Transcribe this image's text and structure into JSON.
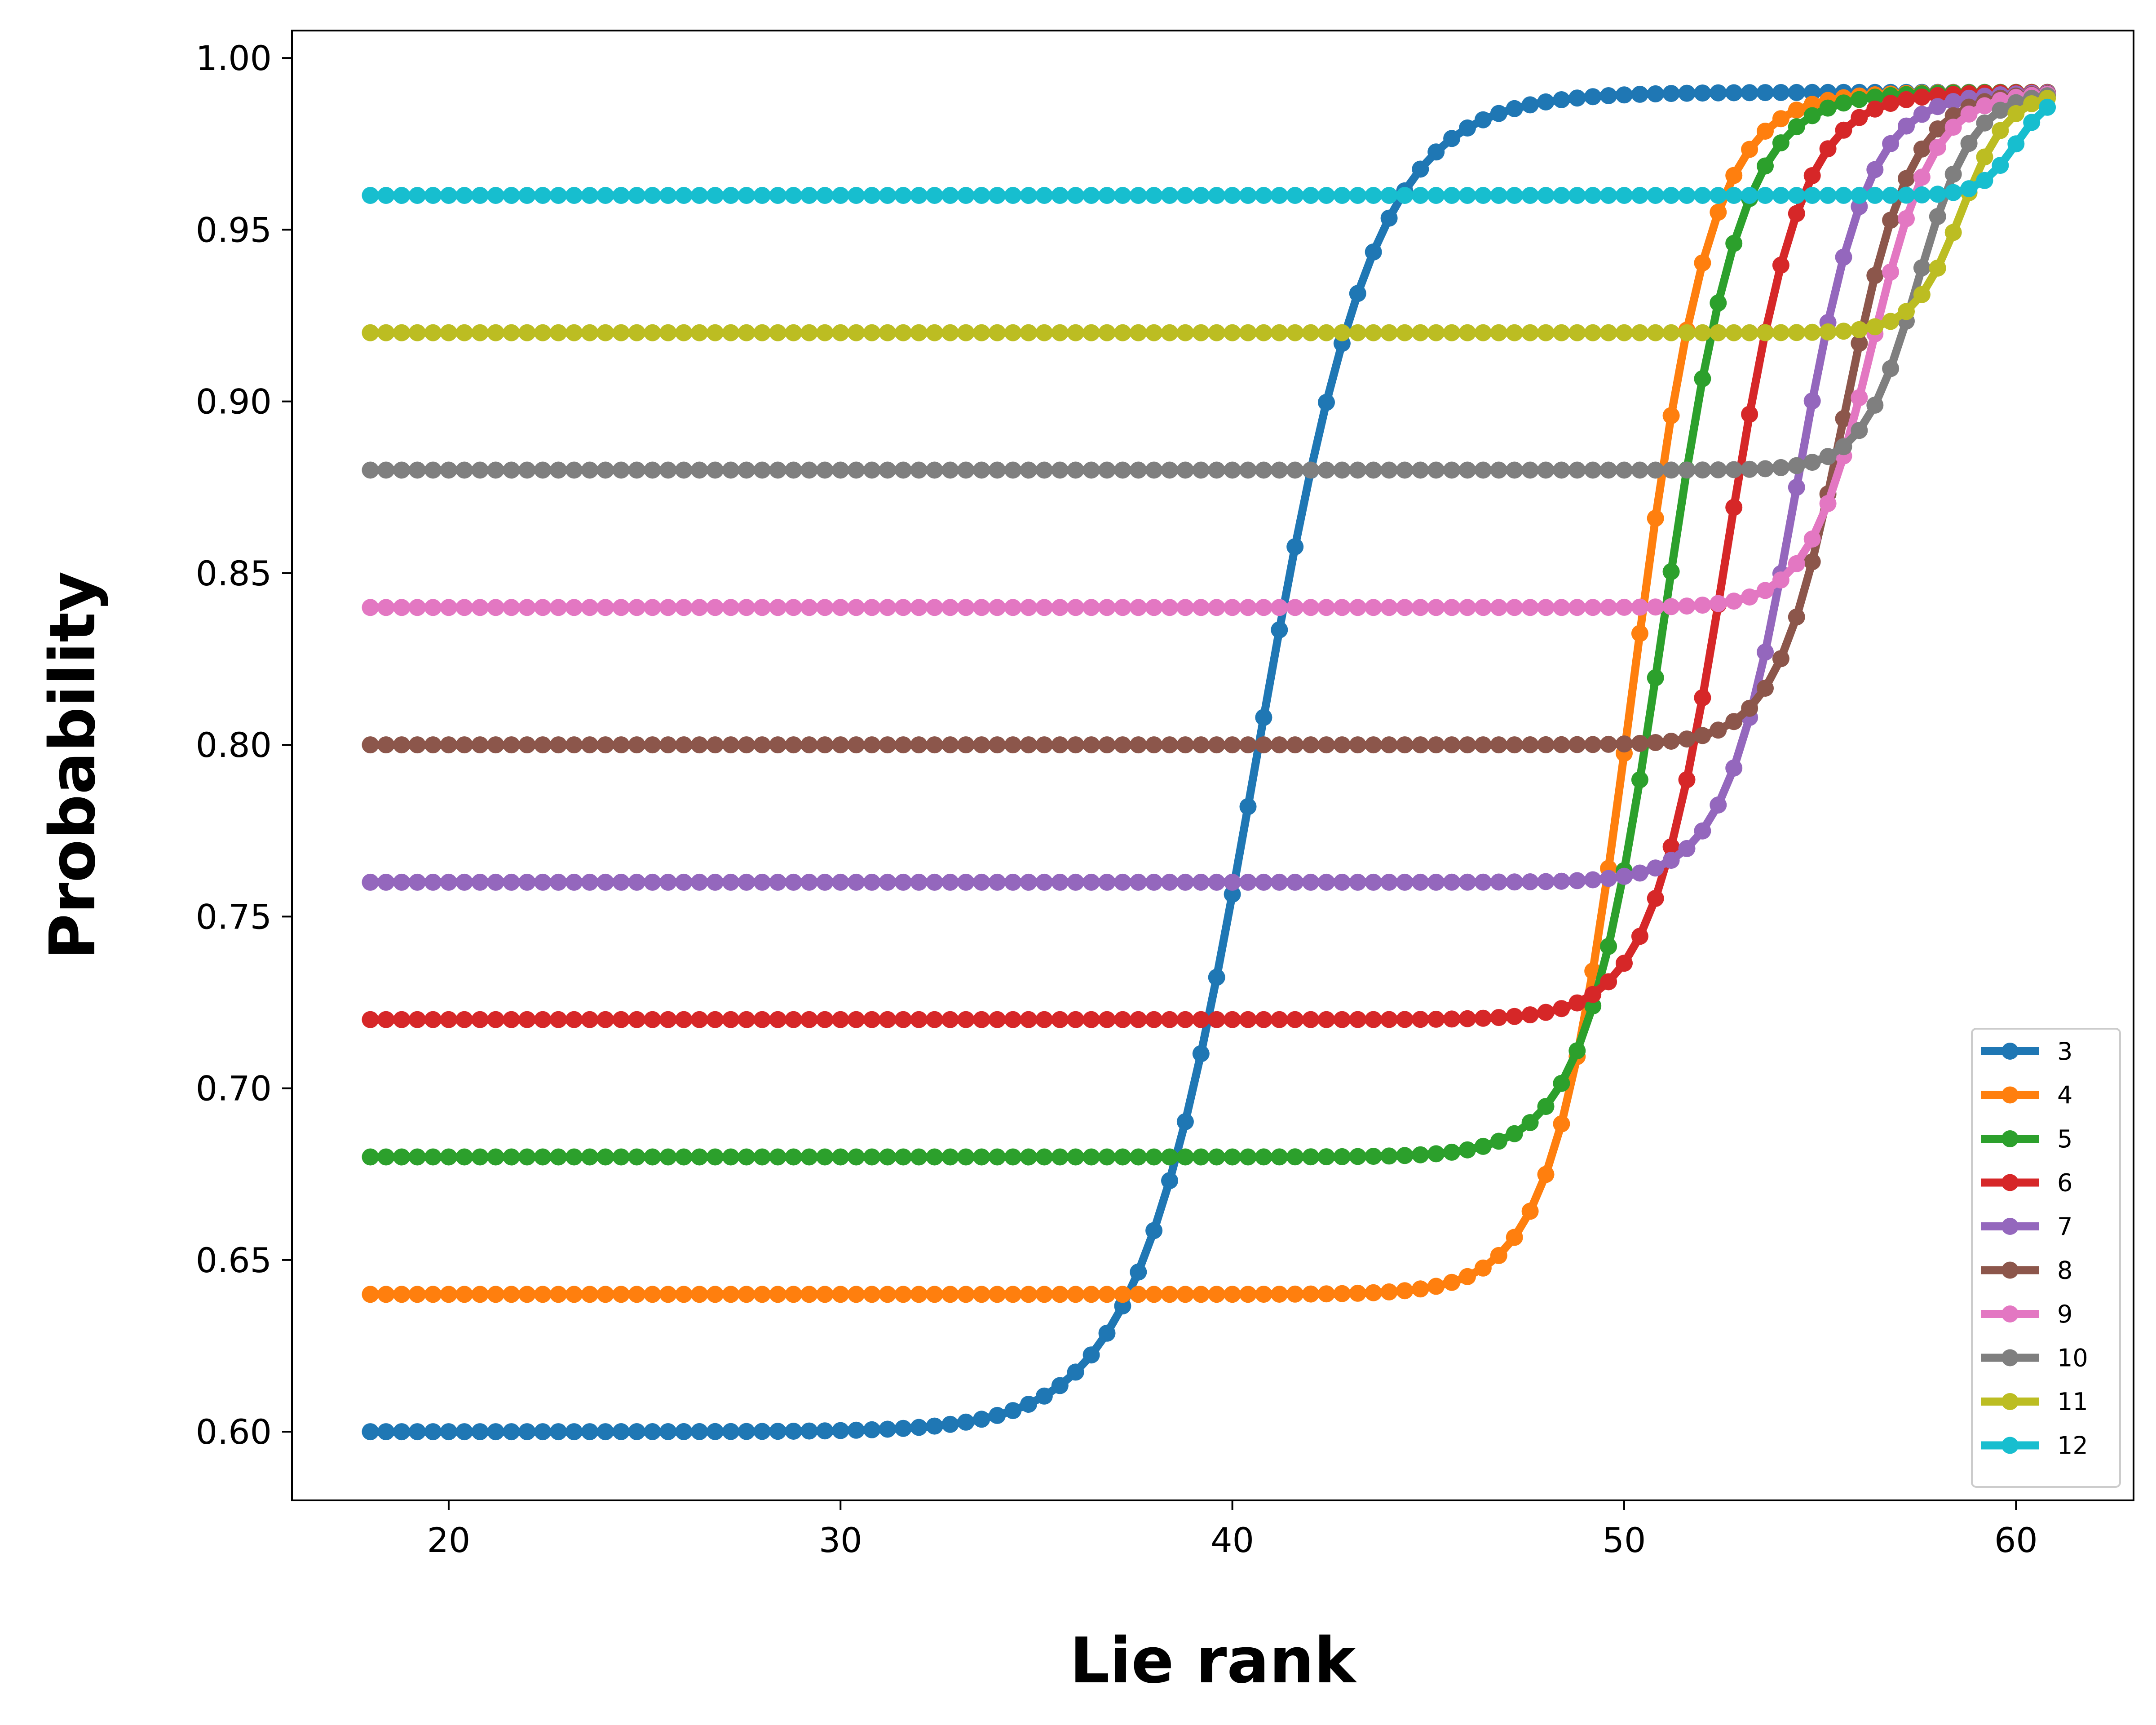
{
  "chart_data": {
    "type": "line",
    "title": "",
    "xlabel": "Lie rank",
    "ylabel": "Probability",
    "xlim": [
      16,
      63
    ],
    "ylim": [
      0.58,
      1.008
    ],
    "xticks": [
      20,
      30,
      40,
      50,
      60
    ],
    "xtick_labels": [
      "20",
      "30",
      "40",
      "50",
      "60"
    ],
    "yticks": [
      0.6,
      0.65,
      0.7,
      0.75,
      0.8,
      0.85,
      0.9,
      0.95,
      1.0
    ],
    "ytick_labels": [
      "0.60",
      "0.65",
      "0.70",
      "0.75",
      "0.80",
      "0.85",
      "0.90",
      "0.95",
      "1.00"
    ],
    "grid": false,
    "legend_position": "lower-right",
    "markers": true,
    "x_start": 18,
    "x_step": 0.4,
    "series": [
      {
        "name": "3",
        "color": "#1f77b4",
        "base": 0.6,
        "top": 0.99,
        "x_end": 61.0,
        "midpoint": 40.6,
        "width": 1.5
      },
      {
        "name": "4",
        "color": "#ff7f0e",
        "base": 0.64,
        "top": 0.99,
        "x_end": 61.0,
        "midpoint": 50.2,
        "width": 1.0
      },
      {
        "name": "5",
        "color": "#2ca02c",
        "base": 0.68,
        "top": 0.99,
        "x_end": 61.0,
        "midpoint": 51.0,
        "width": 1.0
      },
      {
        "name": "6",
        "color": "#d62728",
        "base": 0.72,
        "top": 0.99,
        "x_end": 61.0,
        "midpoint": 52.6,
        "width": 0.95
      },
      {
        "name": "7",
        "color": "#9467bd",
        "base": 0.76,
        "top": 0.99,
        "x_end": 61.0,
        "midpoint": 54.4,
        "width": 0.9
      },
      {
        "name": "8",
        "color": "#8c564b",
        "base": 0.8,
        "top": 0.99,
        "x_end": 61.0,
        "midpoint": 55.6,
        "width": 0.85
      },
      {
        "name": "9",
        "color": "#e377c2",
        "base": 0.84,
        "top": 0.99,
        "x_end": 61.0,
        "midpoint": 56.3,
        "width": 0.8
      },
      {
        "name": "10",
        "color": "#7f7f7f",
        "base": 0.88,
        "top": 0.99,
        "x_end": 61.0,
        "midpoint": 57.5,
        "width": 0.7
      },
      {
        "name": "11",
        "color": "#bcbd22",
        "base": 0.92,
        "top": 0.99,
        "x_end": 61.0,
        "midpoint": 58.6,
        "width": 0.6
      },
      {
        "name": "12",
        "color": "#17becf",
        "base": 0.96,
        "top": 0.99,
        "x_end": 61.0,
        "midpoint": 60.0,
        "width": 0.45
      }
    ]
  }
}
